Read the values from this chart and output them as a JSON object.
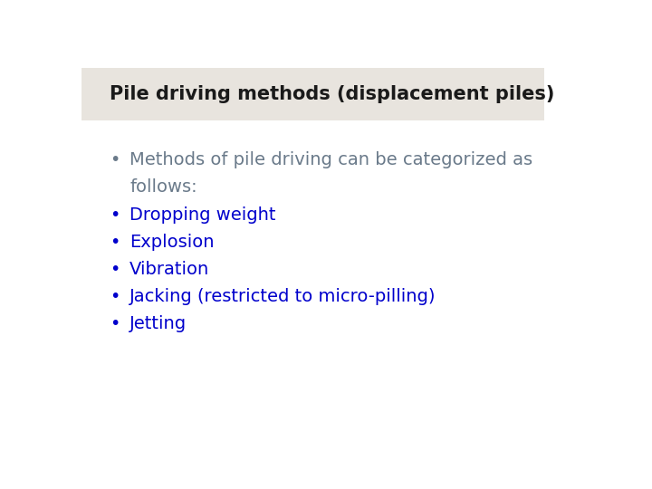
{
  "title": "Pile driving methods (displacement piles)",
  "title_color": "#1a1a1a",
  "title_bg_color": "#e8e4de",
  "title_fontsize": 15,
  "title_fontstyle": "bold",
  "bullet_intro_line1": "Methods of pile driving can be categorized as",
  "bullet_intro_line2": "follows:",
  "bullet_intro_color": "#6a7a8a",
  "bullets": [
    "Dropping weight",
    "Explosion",
    "Vibration",
    "Jacking (restricted to micro-pilling)",
    "Jetting"
  ],
  "bullet_color": "#0000cc",
  "bullet_fontsize": 14,
  "intro_fontsize": 14,
  "background_color": "#ffffff",
  "bullet_symbol": "•"
}
